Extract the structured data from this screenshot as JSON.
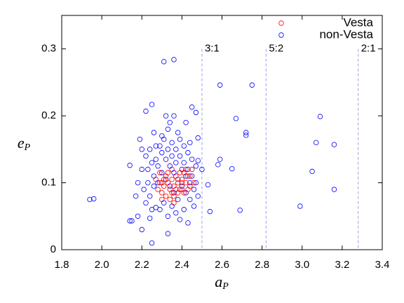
{
  "chart_data": {
    "type": "scatter",
    "xlabel": {
      "main": "a",
      "sub": "P"
    },
    "ylabel": {
      "main": "e",
      "sub": "P"
    },
    "xlim": [
      1.8,
      3.4
    ],
    "ylim": [
      0,
      0.35
    ],
    "xticks": [
      1.8,
      {
        "value": 2,
        "label": "2.0"
      },
      2.2,
      2.4,
      2.6,
      2.8,
      {
        "value": 3,
        "label": "3.0"
      },
      3.2,
      3.4
    ],
    "yticks": [
      0,
      0.1,
      0.2,
      0.3
    ],
    "grid": false,
    "legend": "upper right",
    "resonances": [
      {
        "a": 2.5,
        "label": "3:1"
      },
      {
        "a": 2.82,
        "label": "5:2"
      },
      {
        "a": 3.28,
        "label": "2:1"
      }
    ],
    "resonance_color": "#9aa0ee",
    "series": [
      {
        "name": "Vesta",
        "color": "#ff0000",
        "x": [
          2.28,
          2.29,
          2.3,
          2.31,
          2.32,
          2.33,
          2.34,
          2.35,
          2.36,
          2.37,
          2.38,
          2.39,
          2.4,
          2.41,
          2.42,
          2.43,
          2.44,
          2.45,
          2.3,
          2.32,
          2.34,
          2.36,
          2.38,
          2.4,
          2.42,
          2.33,
          2.35,
          2.37,
          2.39,
          2.27,
          2.31,
          2.29,
          2.35,
          2.41,
          2.44,
          2.46,
          2.43,
          2.36,
          2.3,
          2.4
        ],
        "values": [
          0.09,
          0.1,
          0.085,
          0.095,
          0.11,
          0.1,
          0.09,
          0.105,
          0.095,
          0.11,
          0.1,
          0.09,
          0.105,
          0.115,
          0.1,
          0.11,
          0.095,
          0.12,
          0.075,
          0.08,
          0.075,
          0.08,
          0.085,
          0.09,
          0.12,
          0.115,
          0.12,
          0.09,
          0.115,
          0.105,
          0.105,
          0.115,
          0.085,
          0.085,
          0.11,
          0.1,
          0.09,
          0.07,
          0.1,
          0.1
        ]
      },
      {
        "name": "non-Vesta",
        "color": "#0000ff",
        "x": [
          1.94,
          1.96,
          2.14,
          2.15,
          2.14,
          2.18,
          2.2,
          2.25,
          2.24,
          2.31,
          2.36,
          2.22,
          2.25,
          2.36,
          2.45,
          2.47,
          2.42,
          2.59,
          2.75,
          2.67,
          2.72,
          2.72,
          2.59,
          2.58,
          2.65,
          2.53,
          2.54,
          2.69,
          2.99,
          3.05,
          3.07,
          3.09,
          3.16,
          3.16,
          2.33,
          2.43,
          2.27,
          2.48,
          2.5,
          2.48,
          2.2,
          2.22,
          2.25,
          2.23,
          2.26,
          2.28,
          2.21,
          2.24,
          2.19,
          2.27,
          2.3,
          2.32,
          2.34,
          2.36,
          2.38,
          2.4,
          2.42,
          2.44,
          2.46,
          2.3,
          2.33,
          2.35,
          2.37,
          2.39,
          2.41,
          2.43,
          2.45,
          2.47,
          2.29,
          2.31,
          2.33,
          2.35,
          2.37,
          2.39,
          2.41,
          2.26,
          2.28,
          2.3,
          2.32,
          2.34,
          2.36,
          2.38,
          2.4,
          2.42,
          2.44,
          2.46,
          2.48,
          2.25,
          2.23,
          2.27,
          2.29,
          2.31,
          2.33,
          2.35,
          2.37,
          2.39,
          2.41,
          2.43,
          2.45,
          2.47,
          2.2,
          2.18,
          2.17,
          2.22,
          2.34,
          2.38,
          2.32,
          2.26,
          2.24,
          2.44
        ],
        "values": [
          0.075,
          0.076,
          0.043,
          0.043,
          0.126,
          0.05,
          0.03,
          0.01,
          0.047,
          0.281,
          0.284,
          0.207,
          0.217,
          0.2,
          0.213,
          0.205,
          0.19,
          0.246,
          0.246,
          0.196,
          0.175,
          0.171,
          0.135,
          0.127,
          0.121,
          0.097,
          0.057,
          0.059,
          0.065,
          0.117,
          0.16,
          0.199,
          0.157,
          0.09,
          0.024,
          0.04,
          0.063,
          0.167,
          0.12,
          0.133,
          0.15,
          0.14,
          0.13,
          0.12,
          0.11,
          0.1,
          0.09,
          0.08,
          0.165,
          0.155,
          0.145,
          0.135,
          0.125,
          0.115,
          0.105,
          0.095,
          0.085,
          0.075,
          0.065,
          0.17,
          0.18,
          0.16,
          0.15,
          0.14,
          0.13,
          0.12,
          0.11,
          0.1,
          0.06,
          0.07,
          0.05,
          0.065,
          0.055,
          0.045,
          0.06,
          0.095,
          0.125,
          0.115,
          0.105,
          0.095,
          0.085,
          0.075,
          0.12,
          0.11,
          0.1,
          0.09,
          0.08,
          0.06,
          0.1,
          0.135,
          0.155,
          0.165,
          0.15,
          0.14,
          0.13,
          0.165,
          0.155,
          0.145,
          0.135,
          0.125,
          0.12,
          0.1,
          0.08,
          0.07,
          0.19,
          0.175,
          0.2,
          0.175,
          0.15,
          0.16
        ]
      }
    ]
  }
}
